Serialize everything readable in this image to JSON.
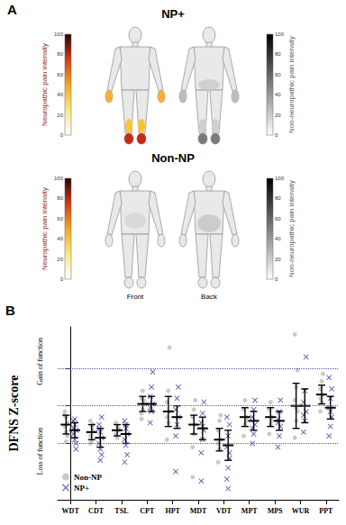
{
  "panel_a": {
    "label": "A",
    "rows": [
      {
        "title": "NP+"
      },
      {
        "title": "Non-NP"
      }
    ],
    "left_colorbar": {
      "label": "Neuropathic pain intensity",
      "ticks": [
        0,
        20,
        40,
        60,
        80,
        100
      ]
    },
    "right_colorbar": {
      "label": "Non-neuropathic pain intensity",
      "ticks": [
        0,
        20,
        40,
        60,
        80,
        100
      ]
    },
    "views": [
      "Front",
      "Back"
    ]
  },
  "chart_data": {
    "panel_label": "B",
    "type": "scatter",
    "ylabel": "DFNS Z-score",
    "annotations": [
      "Gain of function",
      "Loss of function"
    ],
    "categories": [
      "WDT",
      "CDT",
      "TSL",
      "CPT",
      "HPT",
      "MDT",
      "VDT",
      "MPT",
      "MPS",
      "WUR",
      "PPT"
    ],
    "ylim": [
      -5,
      4.2
    ],
    "yticks": [
      -2,
      0,
      2
    ],
    "grid": true,
    "tick_labels": "x",
    "legend": "lower left",
    "series": [
      {
        "name": "Non-NP",
        "color": "#bdbdbd",
        "marker": "circle",
        "values": [
          [
            -0.3,
            -0.6,
            -0.9,
            -1.1,
            -1.4,
            -1.6,
            -0.5,
            -1.9
          ],
          [
            -0.8,
            -1.1,
            -1.3,
            -1.6,
            -1.9,
            -1.0,
            -2.0
          ],
          [
            -0.9,
            -1.1,
            -1.3,
            -1.5,
            -1.7,
            -1.2
          ],
          [
            -0.7,
            -0.2,
            0.1,
            0.4,
            0.8,
            0.3,
            -0.4
          ],
          [
            -1.8,
            -0.9,
            -0.3,
            0.2,
            0.8,
            3.1,
            -0.6
          ],
          [
            -2.2,
            -1.5,
            -1.0,
            -0.6,
            -0.2,
            0.3,
            -3.8
          ],
          [
            -3.0,
            -2.3,
            -1.8,
            -1.3,
            -0.8,
            -0.5,
            -2.0
          ],
          [
            -1.6,
            -1.0,
            -0.6,
            -0.2,
            0.3,
            -0.8
          ],
          [
            -1.5,
            -1.0,
            -0.6,
            -0.2,
            0.2,
            -0.8
          ],
          [
            -1.7,
            -0.8,
            -0.3,
            0.3,
            1.0,
            1.9,
            3.8,
            -0.1
          ],
          [
            -0.3,
            0.2,
            0.6,
            0.9,
            1.3,
            1.7,
            0.4
          ]
        ],
        "mean": [
          -1.0,
          -1.4,
          -1.3,
          0.1,
          -0.3,
          -1.0,
          -1.8,
          -0.6,
          -0.6,
          0.0,
          0.6
        ],
        "error": [
          0.5,
          0.4,
          0.3,
          0.4,
          0.8,
          0.5,
          0.6,
          0.5,
          0.5,
          1.2,
          0.5
        ]
      },
      {
        "name": "NP+",
        "color": "#2a2a9a",
        "marker": "x",
        "values": [
          [
            -0.8,
            -1.0,
            -1.3,
            -1.5,
            -1.8,
            -2.0,
            -1.2,
            -0.7,
            -2.3
          ],
          [
            -1.0,
            -1.4,
            -1.7,
            -2.0,
            -2.3,
            -2.6,
            -1.2,
            -2.9,
            -0.6
          ],
          [
            -0.8,
            -1.2,
            -1.5,
            -1.8,
            -2.1,
            -2.6,
            -3.0,
            -1.0
          ],
          [
            -0.9,
            -0.3,
            0.1,
            0.5,
            1.0,
            1.8,
            -0.1
          ],
          [
            -1.6,
            -1.0,
            -0.6,
            -0.2,
            0.4,
            1.0,
            -3.5
          ],
          [
            -2.5,
            -1.8,
            -1.3,
            -0.9,
            -0.4,
            0.2,
            -4.0,
            -1.1
          ],
          [
            -3.9,
            -3.3,
            -2.8,
            -2.2,
            -1.6,
            -1.0,
            -0.6,
            -4.4,
            -2.5
          ],
          [
            -2.0,
            -1.5,
            -1.0,
            -0.6,
            -0.2,
            0.3,
            -1.2
          ],
          [
            -2.2,
            -1.6,
            -1.1,
            -0.7,
            -0.3,
            0.3,
            -0.9
          ],
          [
            -1.4,
            -0.8,
            -0.3,
            0.2,
            0.8,
            2.6,
            -0.5
          ],
          [
            -1.6,
            -1.1,
            -0.6,
            -0.1,
            0.4,
            0.9,
            1.5,
            -0.3
          ]
        ],
        "mean": [
          -1.3,
          -1.7,
          -1.5,
          0.1,
          -0.6,
          -1.2,
          -2.1,
          -0.8,
          -0.8,
          0.0,
          -0.1
        ],
        "error": [
          0.4,
          0.5,
          0.5,
          0.4,
          0.6,
          0.6,
          0.8,
          0.5,
          0.5,
          0.9,
          0.6
        ]
      }
    ]
  }
}
